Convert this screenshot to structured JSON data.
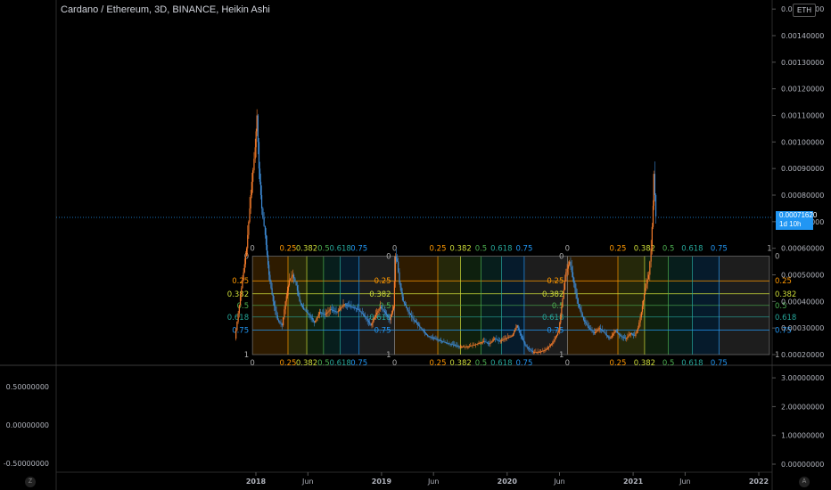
{
  "title": "Cardano / Ethereum, 3D, BINANCE, Heikin Ashi",
  "currency_badge": "ETH",
  "last_price": "0.00071620",
  "countdown": "1d 10h",
  "corner_left": "Z",
  "corner_right": "A",
  "colors": {
    "background": "#000000",
    "candle_up": "#f57c2b",
    "candle_down": "#3d8bd6",
    "price_line": "#2196f3",
    "grid": "#1a1a1a"
  },
  "chart_data": [
    {
      "type": "candlestick",
      "title": "Cardano / Ethereum, 3D, BINANCE, Heikin Ashi",
      "x_ticks": [
        "2018",
        "Jun",
        "2019",
        "Jun",
        "2020",
        "Jun",
        "2021",
        "Jun",
        "2022"
      ],
      "y_ticks": [
        "0.00020000",
        "0.00030000",
        "0.00040000",
        "0.00050000",
        "0.00060000",
        "0.00070000",
        "0.00080000",
        "0.00090000",
        "0.00100000",
        "0.00110000",
        "0.00120000",
        "0.00130000",
        "0.00140000",
        "0.00150000"
      ],
      "ylim": [
        0.00016,
        0.0015
      ],
      "last_value": 0.0007162,
      "price_series": [
        [
          "2017-11-01",
          0.00026
        ],
        [
          "2017-11-20",
          0.00045
        ],
        [
          "2017-12-05",
          0.0006
        ],
        [
          "2017-12-20",
          0.00085
        ],
        [
          "2017-12-30",
          0.00098
        ],
        [
          "2018-01-04",
          0.0011
        ],
        [
          "2018-01-10",
          0.0009
        ],
        [
          "2018-01-18",
          0.00075
        ],
        [
          "2018-01-28",
          0.00065
        ],
        [
          "2018-02-08",
          0.0005
        ],
        [
          "2018-02-20",
          0.0004
        ],
        [
          "2018-03-05",
          0.00033
        ],
        [
          "2018-03-18",
          0.00031
        ],
        [
          "2018-03-28",
          0.0004
        ],
        [
          "2018-04-08",
          0.00048
        ],
        [
          "2018-04-18",
          0.0005
        ],
        [
          "2018-04-28",
          0.00046
        ],
        [
          "2018-05-08",
          0.0004
        ],
        [
          "2018-05-20",
          0.00037
        ],
        [
          "2018-06-05",
          0.00035
        ],
        [
          "2018-06-20",
          0.00032
        ],
        [
          "2018-07-05",
          0.00036
        ],
        [
          "2018-07-20",
          0.00035
        ],
        [
          "2018-08-05",
          0.00037
        ],
        [
          "2018-08-25",
          0.00036
        ],
        [
          "2018-09-15",
          0.00039
        ],
        [
          "2018-10-05",
          0.00038
        ],
        [
          "2018-10-25",
          0.00037
        ],
        [
          "2018-11-15",
          0.00034
        ],
        [
          "2018-12-01",
          0.00031
        ],
        [
          "2018-12-15",
          0.00035
        ],
        [
          "2018-12-28",
          0.00038
        ],
        [
          "2019-01-10",
          0.00036
        ],
        [
          "2019-01-25",
          0.00033
        ],
        [
          "2019-02-05",
          0.00038
        ],
        [
          "2019-02-10",
          0.00057
        ],
        [
          "2019-02-15",
          0.00055
        ],
        [
          "2019-02-22",
          0.00047
        ],
        [
          "2019-03-05",
          0.0004
        ],
        [
          "2019-03-20",
          0.00036
        ],
        [
          "2019-04-05",
          0.00033
        ],
        [
          "2019-04-25",
          0.0003
        ],
        [
          "2019-05-15",
          0.00027
        ],
        [
          "2019-06-05",
          0.00026
        ],
        [
          "2019-06-25",
          0.00025
        ],
        [
          "2019-07-20",
          0.00024
        ],
        [
          "2019-08-15",
          0.00023
        ],
        [
          "2019-09-10",
          0.00023
        ],
        [
          "2019-10-05",
          0.00024
        ],
        [
          "2019-10-25",
          0.00025
        ],
        [
          "2019-11-10",
          0.00024
        ],
        [
          "2019-11-25",
          0.00026
        ],
        [
          "2019-12-10",
          0.00025
        ],
        [
          "2019-12-25",
          0.00026
        ],
        [
          "2020-01-15",
          0.00027
        ],
        [
          "2020-01-30",
          0.00031
        ],
        [
          "2020-02-10",
          0.00027
        ],
        [
          "2020-02-25",
          0.00023
        ],
        [
          "2020-03-15",
          0.00021
        ],
        [
          "2020-04-05",
          0.00021
        ],
        [
          "2020-04-25",
          0.00022
        ],
        [
          "2020-05-15",
          0.00025
        ],
        [
          "2020-05-30",
          0.00029
        ],
        [
          "2020-06-10",
          0.00041
        ],
        [
          "2020-06-20",
          0.00051
        ],
        [
          "2020-06-30",
          0.00055
        ],
        [
          "2020-07-10",
          0.00049
        ],
        [
          "2020-07-25",
          0.00039
        ],
        [
          "2020-08-10",
          0.00033
        ],
        [
          "2020-08-25",
          0.0003
        ],
        [
          "2020-09-10",
          0.00028
        ],
        [
          "2020-09-25",
          0.0003
        ],
        [
          "2020-10-10",
          0.00028
        ],
        [
          "2020-10-25",
          0.00026
        ],
        [
          "2020-11-10",
          0.00029
        ],
        [
          "2020-11-25",
          0.00027
        ],
        [
          "2020-12-10",
          0.00026
        ],
        [
          "2020-12-25",
          0.00028
        ],
        [
          "2021-01-05",
          0.00027
        ],
        [
          "2021-01-15",
          0.0003
        ],
        [
          "2021-01-25",
          0.00036
        ],
        [
          "2021-02-05",
          0.00045
        ],
        [
          "2021-02-15",
          0.0005
        ],
        [
          "2021-02-22",
          0.0006
        ],
        [
          "2021-02-28",
          0.00076
        ],
        [
          "2021-03-02",
          0.00088
        ],
        [
          "2021-03-08",
          0.00072
        ]
      ],
      "fib_boxes": [
        {
          "start": "2017-12-22",
          "end": "2019-02-08",
          "top_label": "0",
          "bottom_label": "1"
        },
        {
          "start": "2019-02-08",
          "end": "2020-06-24",
          "top_label": "0",
          "bottom_label": "1"
        },
        {
          "start": "2020-06-24",
          "end": "2022-02-01",
          "top_label": "0",
          "bottom_label": "1"
        }
      ],
      "fib_price_top": 0.00057,
      "fib_price_bottom": 0.0002,
      "fib_levels": [
        {
          "name": "0.25",
          "value": 0.25,
          "color": "#ff9800"
        },
        {
          "name": "0.382",
          "value": 0.382,
          "color": "#cddc39"
        },
        {
          "name": "0.5",
          "value": 0.5,
          "color": "#4caf50"
        },
        {
          "name": "0.618",
          "value": 0.618,
          "color": "#26a69a"
        },
        {
          "name": "0.75",
          "value": 0.75,
          "color": "#2196f3"
        }
      ],
      "grid": false,
      "legend": "none"
    },
    {
      "type": "indicator",
      "left_ticks": [
        "0.50000000",
        "0.00000000",
        "-0.50000000"
      ],
      "left_values": [
        0.5,
        0.0,
        -0.5
      ],
      "right_ticks": [
        "3.00000000",
        "2.00000000",
        "1.00000000",
        "0.00000000"
      ],
      "right_values": [
        3,
        2,
        1,
        0
      ]
    }
  ]
}
